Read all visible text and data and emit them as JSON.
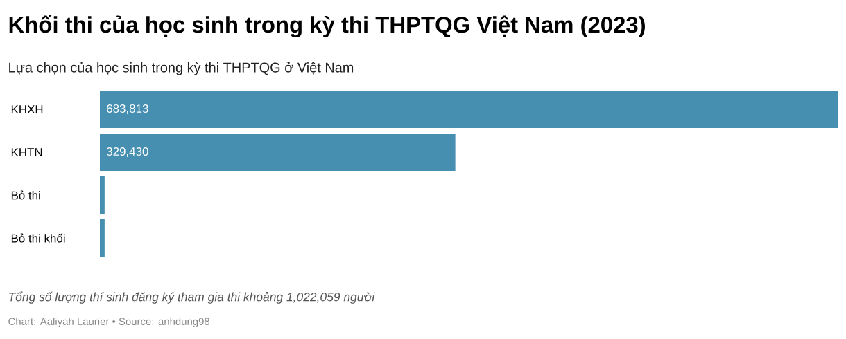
{
  "chart_data": {
    "type": "bar",
    "orientation": "horizontal",
    "title": "Khối thi của học sinh trong kỳ thi THPTQG Việt Nam (2023)",
    "subtitle": "Lựa chọn của học sinh trong kỳ thi THPTQG ở Việt Nam",
    "categories": [
      "KHXH",
      "KHTN",
      "Bỏ thi",
      "Bỏ thi khối"
    ],
    "values": [
      683813,
      329430,
      4400,
      4400
    ],
    "value_labels": [
      "683,813",
      "329,430",
      null,
      null
    ],
    "color": "#468fb0",
    "annotations": [
      "Tổng số lượng thí sinh đăng ký tham gia thi khoảng 1,022,059 người",
      "Chart: Aaliyah Laurier • Source: anhdung98"
    ]
  }
}
